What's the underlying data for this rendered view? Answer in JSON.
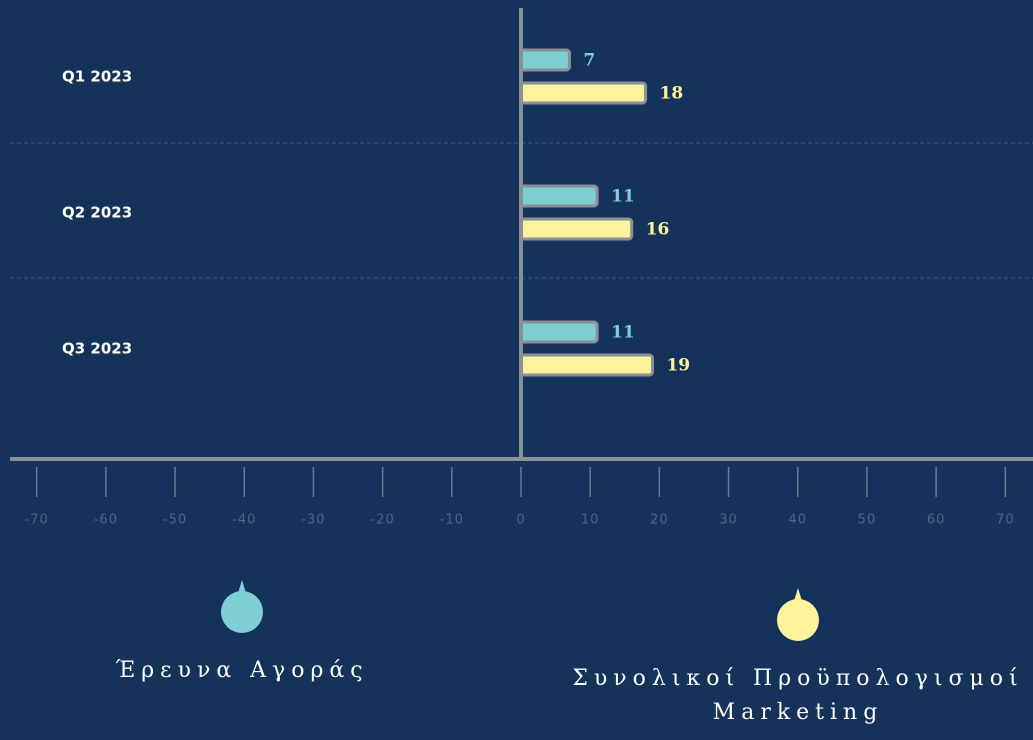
{
  "chart_data": {
    "type": "bar",
    "orientation": "horizontal",
    "categories": [
      "Q1 2023",
      "Q2 2023",
      "Q3 2023"
    ],
    "series": [
      {
        "name": "Έρευνα Αγοράς",
        "color": "#7ecfd3",
        "values": [
          7,
          11,
          11
        ]
      },
      {
        "name": "Συνολικοί Προϋπολογισμοί Marketing",
        "color": "#fdf39a",
        "values": [
          18,
          16,
          19
        ]
      }
    ],
    "xlim": [
      -74,
      74
    ],
    "xticks": [
      -70,
      -60,
      -50,
      -40,
      -30,
      -20,
      -10,
      0,
      10,
      20,
      30,
      40,
      50,
      60,
      70
    ]
  }
}
